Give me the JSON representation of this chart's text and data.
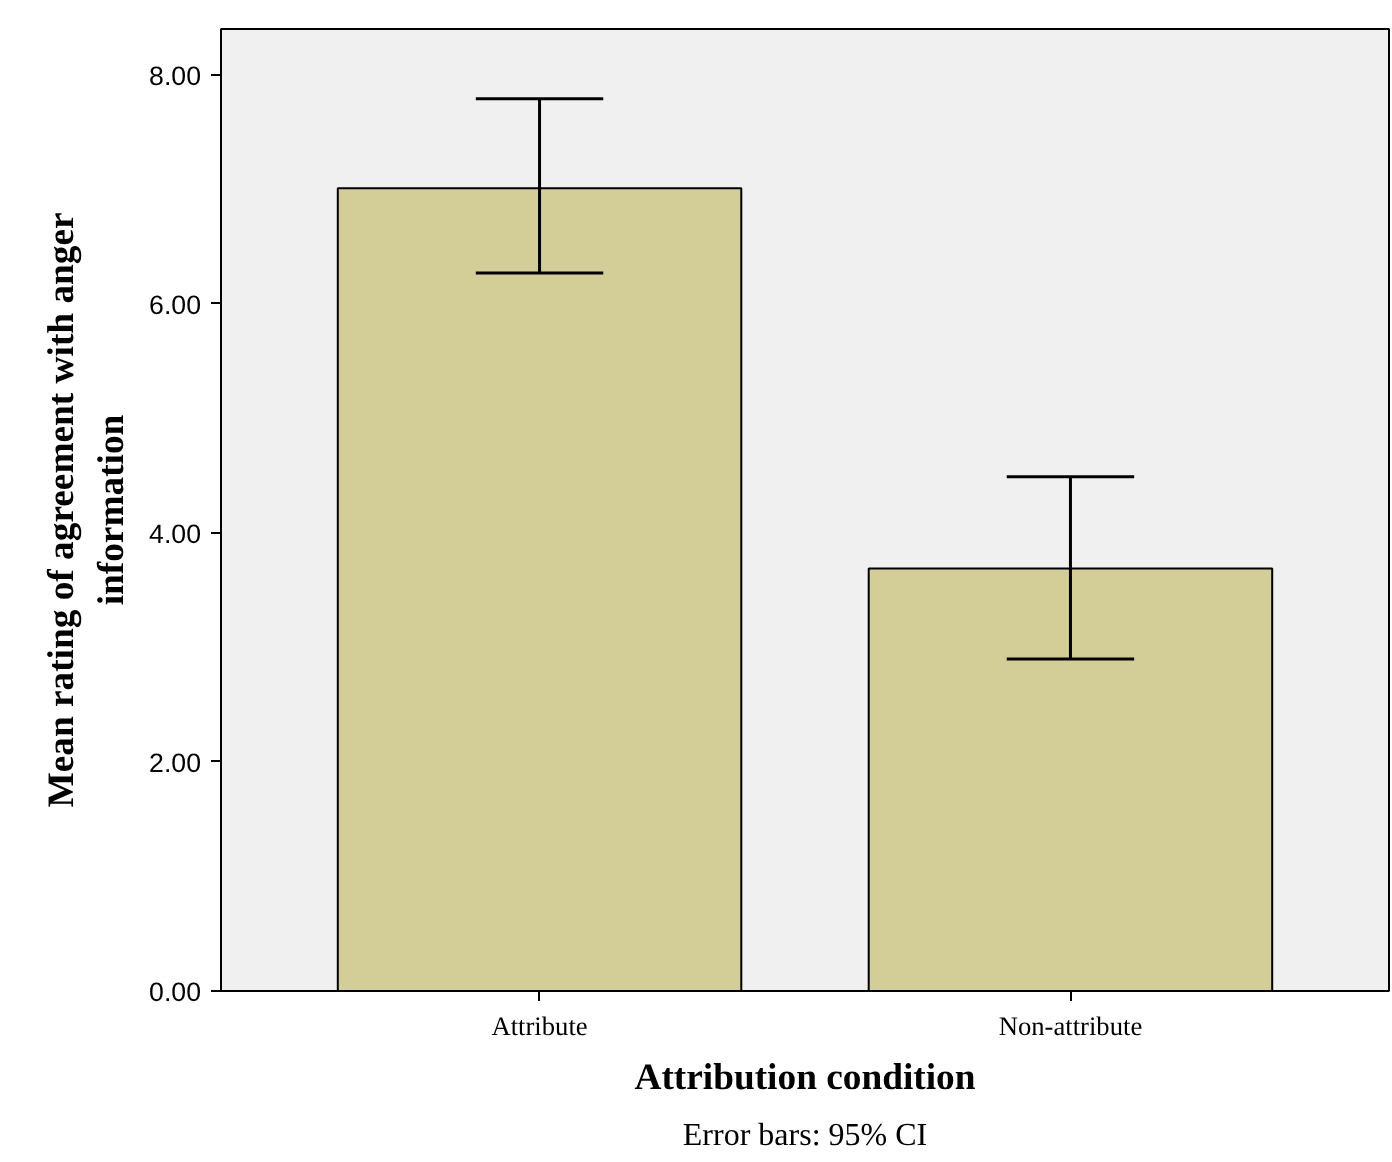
{
  "chart_data": {
    "type": "bar",
    "xlabel": "Attribution condition",
    "ylabel": "Mean rating of agreement with anger information",
    "categories": [
      "Attribute",
      "Non-attribute"
    ],
    "values": [
      7.01,
      3.69
    ],
    "errors": [
      [
        6.27,
        7.79
      ],
      [
        2.9,
        4.49
      ]
    ],
    "color": "#d3ce97",
    "ylim": [
      0,
      8.4
    ],
    "yticks": [
      {
        "value": 0,
        "label": "0.00"
      },
      {
        "value": 2,
        "label": "2.00"
      },
      {
        "value": 4,
        "label": "4.00"
      },
      {
        "value": 6,
        "label": "6.00"
      },
      {
        "value": 8,
        "label": "8.00"
      }
    ],
    "grid": false,
    "annotations": [
      "Error bars: 95% CI"
    ]
  }
}
